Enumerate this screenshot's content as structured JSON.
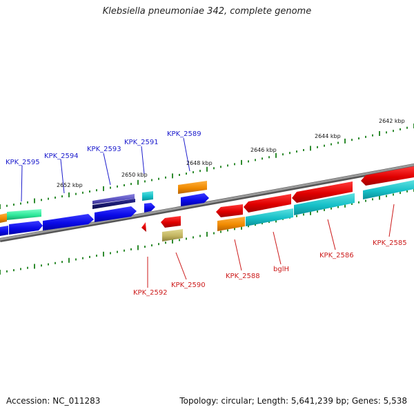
{
  "title": "Klebsiella pneumoniae 342, complete genome",
  "footer": {
    "accession": "Accession: NC_011283",
    "summary": "Topology: circular; Length: 5,641,239 bp; Genes: 5,538"
  },
  "colors": {
    "backbone": "#7a7a7a",
    "forward_label": "#1a1acc",
    "reverse_label": "#cc1a1a",
    "tick": "#2e8b2e"
  },
  "scale_ticks": [
    {
      "label": "2642 kbp"
    },
    {
      "label": "2644 kbp"
    },
    {
      "label": "2646 kbp"
    },
    {
      "label": "2648 kbp"
    },
    {
      "label": "2650 kbp"
    },
    {
      "label": "2652 kbp"
    }
  ],
  "genes": [
    {
      "label": "KPK_2595",
      "strand": "+"
    },
    {
      "label": "KPK_2594",
      "strand": "+"
    },
    {
      "label": "KPK_2593",
      "strand": "+"
    },
    {
      "label": "KPK_2591",
      "strand": "+"
    },
    {
      "label": "KPK_2589",
      "strand": "+"
    },
    {
      "label": "KPK_2592",
      "strand": "-"
    },
    {
      "label": "KPK_2590",
      "strand": "-"
    },
    {
      "label": "KPK_2588",
      "strand": "-"
    },
    {
      "label": "bglH",
      "strand": "-"
    },
    {
      "label": "KPK_2586",
      "strand": "-"
    },
    {
      "label": "KPK_2585",
      "strand": "-"
    }
  ]
}
